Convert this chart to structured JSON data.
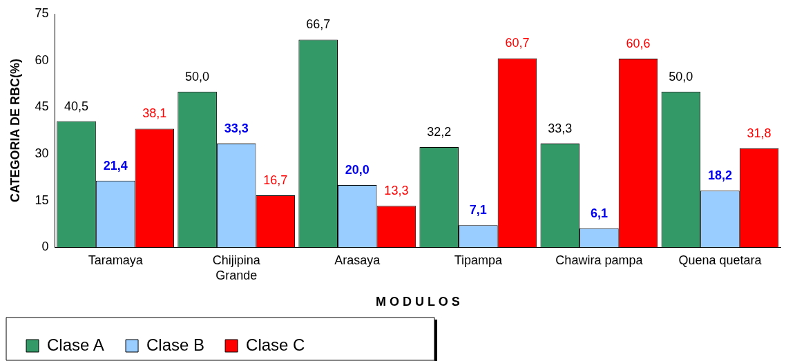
{
  "chart_data": {
    "type": "bar",
    "xlabel": "M O D U L O S",
    "ylabel": "CATEGORIA DE RBC(%)",
    "categories": [
      "Taramaya",
      "Chijipina Grande",
      "Arasaya",
      "Tipampa",
      "Chawira pampa",
      "Quena quetara"
    ],
    "series": [
      {
        "name": "Clase A",
        "color": "#339966",
        "values": [
          40.5,
          50.0,
          66.7,
          32.2,
          33.3,
          50.0
        ],
        "value_labels": [
          "40,5",
          "50,0",
          "66,7",
          "32,2",
          "33,3",
          "50,0"
        ]
      },
      {
        "name": "Clase B",
        "color": "#99ccff",
        "values": [
          21.4,
          33.3,
          20.0,
          7.1,
          6.1,
          18.2
        ],
        "value_labels": [
          "21,4",
          "33,3",
          "20,0",
          "7,1",
          "6,1",
          "18,2"
        ]
      },
      {
        "name": "Clase C",
        "color": "#ff0000",
        "values": [
          38.1,
          16.7,
          13.3,
          60.7,
          60.6,
          31.8
        ],
        "value_labels": [
          "38,1",
          "16,7",
          "13,3",
          "60,7",
          "60,6",
          "31,8"
        ]
      }
    ],
    "ylim": [
      0,
      75
    ],
    "yticks": [
      0,
      15,
      30,
      45,
      60,
      75
    ],
    "grid": false,
    "legend": "bottom left"
  }
}
